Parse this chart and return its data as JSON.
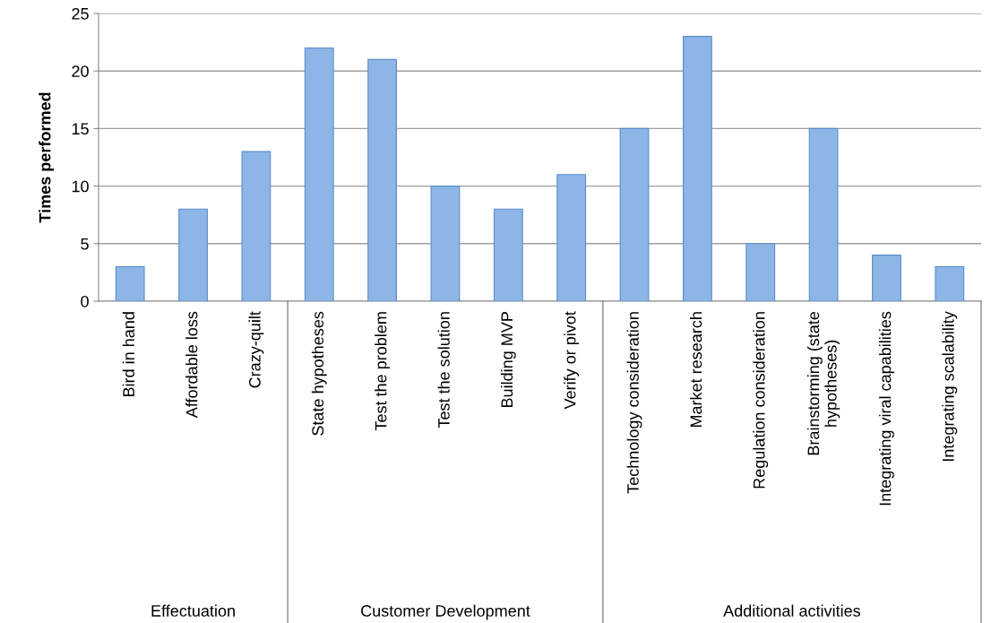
{
  "chart_data": {
    "type": "bar",
    "ylabel": "Times performed",
    "categories": [
      "Bird in hand",
      "Affordable loss",
      "Crazy-quilt",
      "State hypotheses",
      "Test the problem",
      "Test the solution",
      "Building MVP",
      "Verify or pivot",
      "Technology consideration",
      "Market research",
      "Regulation consideration",
      "Brainstorming (state\nhypotheses)",
      "Integrating viral capabilities",
      "Integrating scalability"
    ],
    "values": [
      3,
      8,
      13,
      22,
      21,
      10,
      8,
      11,
      15,
      23,
      5,
      15,
      4,
      3
    ],
    "color": "#8db6e6",
    "ylim": [
      0,
      25
    ],
    "yticks": [
      0,
      5,
      10,
      15,
      20,
      25
    ],
    "grid": "y",
    "annotations": [
      "Effectuation",
      "Customer Development",
      "Additional activities"
    ]
  }
}
